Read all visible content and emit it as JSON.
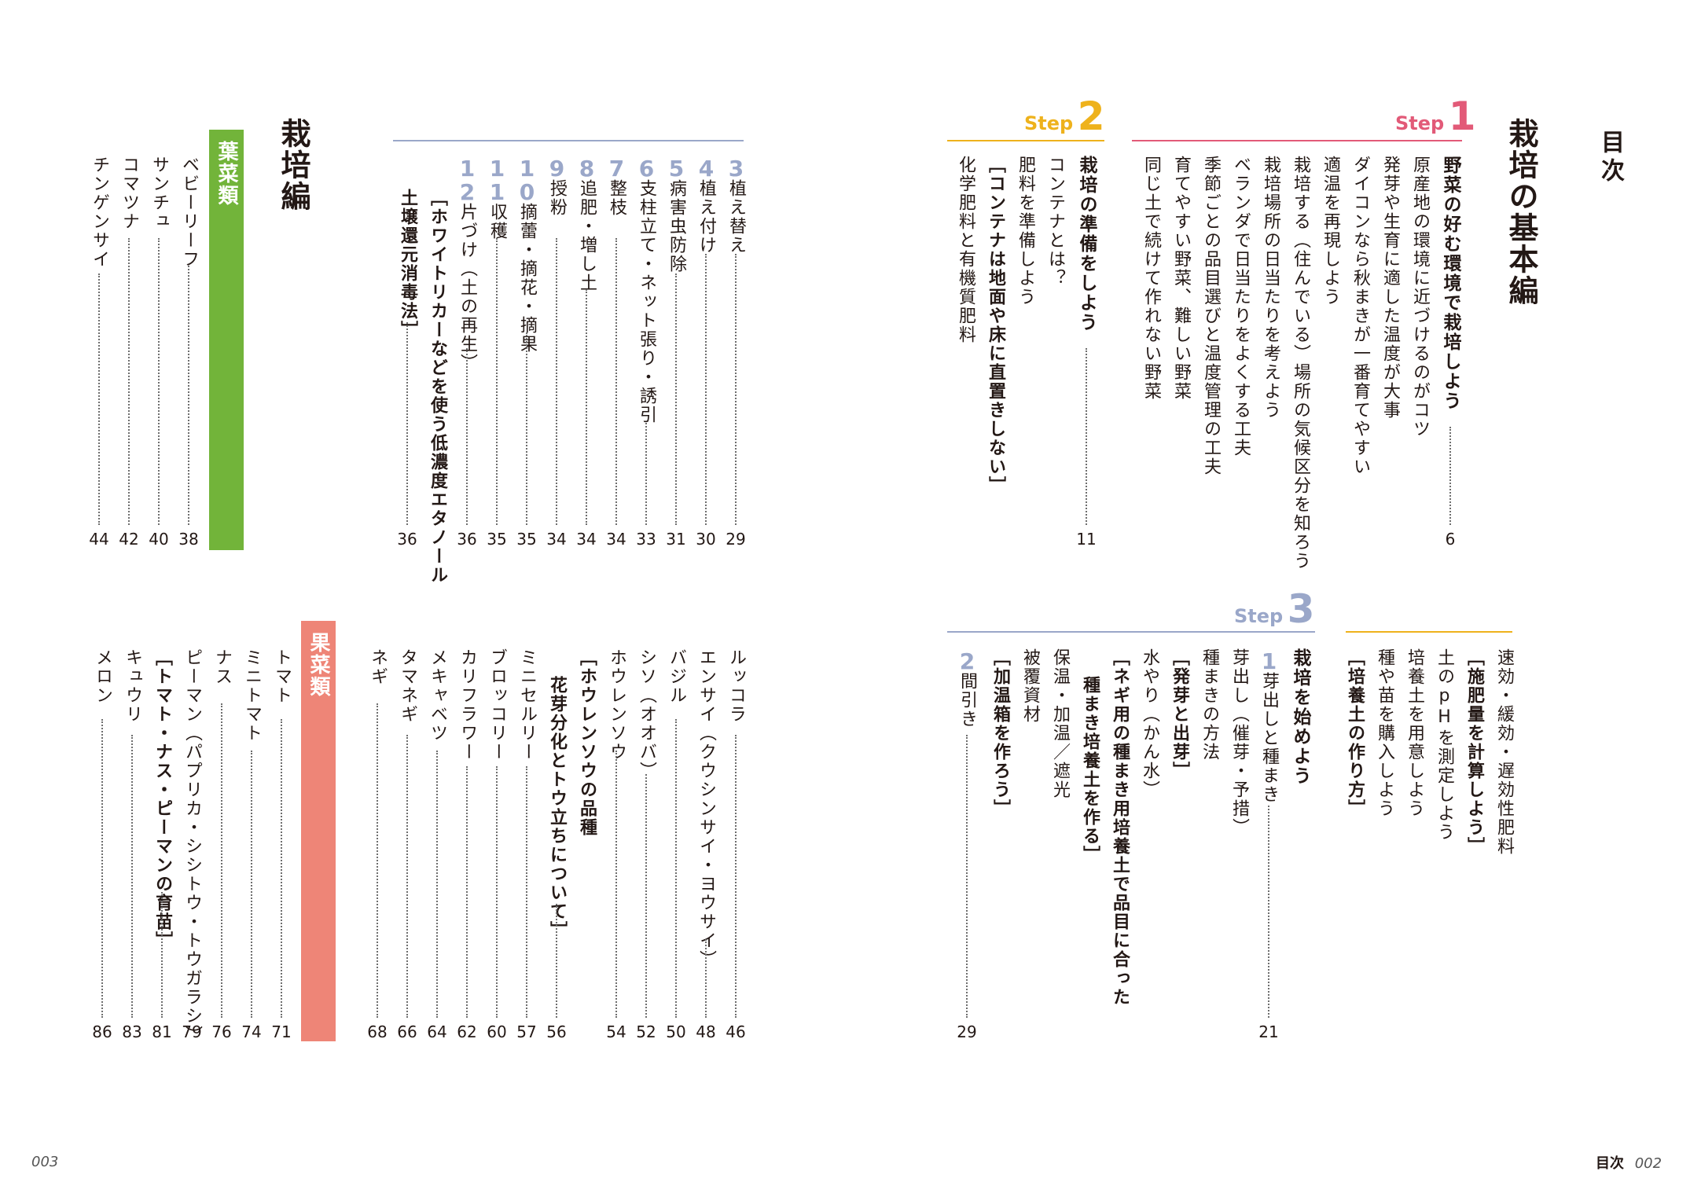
{
  "toc_title": "目次",
  "footer": {
    "left_page": "003",
    "right_label": "目次",
    "right_page": "002"
  },
  "basic": {
    "heading": "栽培の基本編",
    "step1": {
      "word": "Step",
      "num": "1",
      "title": "野菜の好む環境で栽培しよう",
      "page": "6",
      "items": [
        "原産地の環境に近づけるのがコツ",
        "発芽や生育に適した温度が大事",
        "ダイコンなら秋まきが一番育てやすい",
        "適温を再現しよう",
        "栽培する（住んでいる）場所の気候区分を知ろう",
        "栽培場所の日当たりを考えよう",
        "ベランダで日当たりをよくする工夫",
        "季節ごとの品目選びと温度管理の工夫",
        "育てやすい野菜、難しい野菜",
        "同じ土で続けて作れない野菜"
      ]
    },
    "step2": {
      "word": "Step",
      "num": "2",
      "title": "栽培の準備をしよう",
      "page": "11",
      "items": [
        "コンテナとは？",
        "肥料を準備しよう",
        "［コンテナは地面や床に直置きしない］",
        "化学肥料と有機質肥料"
      ]
    },
    "step2_cont": [
      "速効・緩効・遅効性肥料",
      "［施肥量を計算しよう］",
      "土のpHを測定しよう",
      "培養土を用意しよう",
      "種や苗を購入しよう",
      "［培養土の作り方］"
    ],
    "step3": {
      "word": "Step",
      "num": "3",
      "title": "栽培を始めよう",
      "page1": "21",
      "page2": "29",
      "n1": "1",
      "t1": "芽出しと種まき",
      "items1": [
        "芽出し（催芽・予措）",
        "種まきの方法",
        "［発芽と出芽］",
        "水やり（かん水）",
        "［ネギ用の種まき用培養土で品目に合った",
        "種まき培養土を作る］",
        "保温・加温／遮光",
        "被覆資材",
        "［加温箱を作ろう］"
      ],
      "n2": "2",
      "t2": "間引き"
    }
  },
  "cultivation": {
    "heading": "栽培編",
    "cont": [
      {
        "n": "3",
        "t": "植え替え",
        "p": "29"
      },
      {
        "n": "4",
        "t": "植え付け",
        "p": "30"
      },
      {
        "n": "5",
        "t": "病害虫防除",
        "p": "31"
      },
      {
        "n": "6",
        "t": "支柱立て・ネット張り・誘引",
        "p": "33"
      },
      {
        "n": "7",
        "t": "整枝",
        "p": "34"
      },
      {
        "n": "8",
        "t": "追肥・増し土",
        "p": "34"
      },
      {
        "n": "9",
        "t": "授粉",
        "p": "34"
      },
      {
        "n": "10",
        "t": "摘蕾・摘花・摘果",
        "p": "35"
      },
      {
        "n": "11",
        "t": "収穫",
        "p": "35"
      },
      {
        "n": "12",
        "t": "片づけ（土の再生）",
        "p": "36"
      }
    ],
    "white_note": "［ホワイトリカーなどを使う低濃度エタノール",
    "white_note2": "土壌還元消毒法］",
    "white_page": "36",
    "leaf_label": "葉菜類",
    "leaf": [
      {
        "t": "ベビーリーフ",
        "p": "38"
      },
      {
        "t": "サンチュ",
        "p": "40"
      },
      {
        "t": "コマツナ",
        "p": "42"
      },
      {
        "t": "チンゲンサイ",
        "p": "44"
      }
    ],
    "leaf2": [
      {
        "t": "ルッコラ",
        "p": "46"
      },
      {
        "t": "エンサイ（クウシンサイ・ヨウサイ）",
        "p": "48"
      },
      {
        "t": "バジル",
        "p": "50"
      },
      {
        "t": "シソ（オオバ）",
        "p": "52"
      },
      {
        "t": "ホウレンソウ",
        "p": "54"
      },
      {
        "t": "［ホウレンソウの品種",
        "p": ""
      },
      {
        "t": "花芽分化とトウ立ちについて］",
        "p": "56"
      },
      {
        "t": "ミニセルリー",
        "p": "57"
      },
      {
        "t": "ブロッコリー",
        "p": "60"
      },
      {
        "t": "カリフラワー",
        "p": "62"
      },
      {
        "t": "メキャベツ",
        "p": "64"
      },
      {
        "t": "タマネギ",
        "p": "66"
      },
      {
        "t": "ネギ",
        "p": "68"
      }
    ],
    "fruit_label": "果菜類",
    "fruit": [
      {
        "t": "トマト",
        "p": "71"
      },
      {
        "t": "ミニトマト",
        "p": "74"
      },
      {
        "t": "ナス",
        "p": "76"
      },
      {
        "t": "ピーマン（パプリカ・シシトウ・トウガラシ）",
        "p": "79"
      },
      {
        "t": "［トマト・ナス・ピーマンの育苗］",
        "p": "81"
      },
      {
        "t": "キュウリ",
        "p": "83"
      },
      {
        "t": "メロン",
        "p": "86"
      }
    ]
  },
  "colors": {
    "step1": "#e25a78",
    "step2": "#eeb21c",
    "step3": "#9aa7c9",
    "leaf_band": "#72b43a",
    "fruit_band": "#ee8577"
  }
}
